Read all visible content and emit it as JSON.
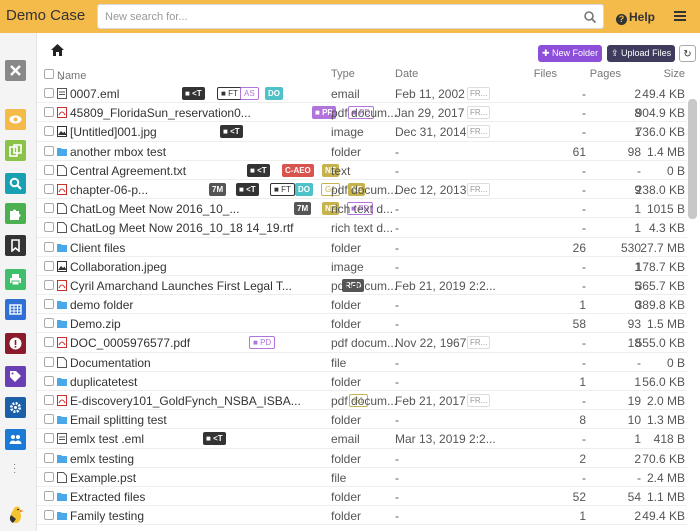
{
  "app": {
    "title": "Demo Case"
  },
  "search": {
    "placeholder": "New search for..."
  },
  "help": {
    "label": "Help"
  },
  "toolbar": {
    "new_folder": "New Folder",
    "upload": "Upload Files"
  },
  "columns": {
    "name": "Name",
    "type": "Type",
    "date": "Date",
    "files": "Files",
    "pages": "Pages",
    "size": "Size"
  },
  "colors": {
    "topbar": "#f4ba4a",
    "new_folder": "#8d4fd9",
    "upload": "#3f3b5c"
  },
  "sidebar": [
    {
      "name": "close-icon",
      "color": "#888888"
    },
    {
      "name": "eye-icon",
      "color": "#f4ba4a"
    },
    {
      "name": "copy-icon",
      "color": "#8bc34a"
    },
    {
      "name": "search-icon",
      "color": "#1aa0b3"
    },
    {
      "name": "puzzle-icon",
      "color": "#4caf50"
    },
    {
      "name": "bookmark-icon",
      "color": "#333333"
    },
    {
      "name": "print-icon",
      "color": "#3fbf6b"
    },
    {
      "name": "table-icon",
      "color": "#2f6fd6"
    },
    {
      "name": "alert-icon",
      "color": "#8b1a2b"
    },
    {
      "name": "tags-icon",
      "color": "#6a3fb5"
    },
    {
      "name": "gear-icon",
      "color": "#1a5fa8"
    },
    {
      "name": "users-icon",
      "color": "#1a7ad6"
    }
  ],
  "rows": [
    {
      "icon": "email",
      "name": "0007.eml",
      "type": "email",
      "date": "Feb 11, 2002",
      "fr": "FR...",
      "files": "-",
      "pages": "2",
      "size": "49.4 KB",
      "tags": [
        [
          "dark",
          "<T"
        ],
        [
          "out-dark",
          "FT"
        ],
        [
          "out-purp",
          "AS"
        ],
        [
          "teal",
          "DO"
        ]
      ]
    },
    {
      "icon": "pdf",
      "name": "45809_FloridaSun_reservation0...",
      "type": "pdf docum...",
      "date": "Jan 29, 2017",
      "fr": "FR...",
      "files": "-",
      "pages": "8",
      "size": "904.9 KB",
      "tags": [
        [
          "purp",
          "PR"
        ],
        [
          "out-purp",
          "PD"
        ]
      ]
    },
    {
      "icon": "image",
      "name": "[Untitled]001.jpg",
      "type": "image",
      "date": "Dec 31, 2014",
      "fr": "FR...",
      "files": "-",
      "pages": "1",
      "size": "736.0 KB",
      "tags": [
        [
          "dark",
          "<T"
        ]
      ]
    },
    {
      "icon": "folder",
      "name": "another mbox test",
      "type": "folder",
      "date": "-",
      "fr": "",
      "files": "61",
      "pages": "98",
      "size": "1.4 MB",
      "tags": []
    },
    {
      "icon": "text",
      "name": "Central Agreement.txt",
      "type": "text",
      "date": "-",
      "fr": "",
      "files": "-",
      "pages": "-",
      "size": "0 B",
      "tags": [
        [
          "dark",
          "<T"
        ],
        [
          "red",
          "C-AEO"
        ],
        [
          "olive",
          "NE"
        ]
      ]
    },
    {
      "icon": "pdf",
      "name": "chapter-06-p...",
      "type": "pdf docum...",
      "date": "Dec 12, 2013",
      "fr": "FR...",
      "files": "-",
      "pages": "9",
      "size": "238.0 KB",
      "tags": [
        [
          "gray",
          "7M"
        ],
        [
          "dark",
          "<T"
        ],
        [
          "out-dark",
          "FT"
        ],
        [
          "teal",
          "DO"
        ],
        [
          "out-olive",
          "G1"
        ],
        [
          "olive",
          "NE"
        ]
      ]
    },
    {
      "icon": "text",
      "name": "ChatLog Meet Now 2016_10_...",
      "type": "rich text d...",
      "date": "-",
      "fr": "",
      "files": "-",
      "pages": "1",
      "size": "1015 B",
      "tags": [
        [
          "gray",
          "7M"
        ],
        [
          "olive",
          "NE"
        ],
        [
          "out-purp",
          "PD"
        ]
      ]
    },
    {
      "icon": "text",
      "name": "ChatLog Meet Now 2016_10_18 14_19.rtf",
      "type": "rich text d...",
      "date": "-",
      "fr": "",
      "files": "-",
      "pages": "1",
      "size": "4.3 KB",
      "tags": []
    },
    {
      "icon": "folder",
      "name": "Client files",
      "type": "folder",
      "date": "-",
      "fr": "",
      "files": "26",
      "pages": "530",
      "size": "27.7 MB",
      "tags": []
    },
    {
      "icon": "image",
      "name": "Collaboration.jpeg",
      "type": "image",
      "date": "-",
      "fr": "",
      "files": "-",
      "pages": "1",
      "size": "178.7 KB",
      "tags": []
    },
    {
      "icon": "pdf",
      "name": "Cyril Amarchand Launches First Legal T...",
      "type": "pdf docum...",
      "date": "Feb 21, 2019 2:2...",
      "fr": "",
      "files": "-",
      "pages": "5",
      "size": "365.7 KB",
      "tags": [
        [
          "gray",
          "RFD"
        ]
      ]
    },
    {
      "icon": "folder",
      "name": "demo folder",
      "type": "folder",
      "date": "-",
      "fr": "",
      "files": "1",
      "pages": "0",
      "size": "389.8 KB",
      "tags": []
    },
    {
      "icon": "folder",
      "name": "Demo.zip",
      "type": "folder",
      "date": "-",
      "fr": "",
      "files": "58",
      "pages": "93",
      "size": "1.5 MB",
      "tags": []
    },
    {
      "icon": "pdf",
      "name": "DOC_0005976577.pdf",
      "type": "pdf docum...",
      "date": "Nov 22, 1967",
      "fr": "FR...",
      "files": "-",
      "pages": "18",
      "size": "555.0 KB",
      "tags": [
        [
          "out-purp",
          "PD"
        ]
      ]
    },
    {
      "icon": "text",
      "name": "Documentation",
      "type": "file",
      "date": "-",
      "fr": "",
      "files": "-",
      "pages": "-",
      "size": "0 B",
      "tags": []
    },
    {
      "icon": "folder",
      "name": "duplicatetest",
      "type": "folder",
      "date": "-",
      "fr": "",
      "files": "1",
      "pages": "1",
      "size": "56.0 KB",
      "tags": []
    },
    {
      "icon": "pdf",
      "name": "E-discovery101_GoldFynch_NSBA_ISBA...",
      "type": "pdf docum...",
      "date": "Feb 21, 2017",
      "fr": "FR...",
      "files": "-",
      "pages": "19",
      "size": "2.0 MB",
      "tags": [
        [
          "out-olive",
          "G1"
        ]
      ]
    },
    {
      "icon": "folder",
      "name": "Email splitting test",
      "type": "folder",
      "date": "-",
      "fr": "",
      "files": "8",
      "pages": "10",
      "size": "1.3 MB",
      "tags": []
    },
    {
      "icon": "email",
      "name": "emlx test .eml",
      "type": "email",
      "date": "Mar 13, 2019 2:2...",
      "fr": "",
      "files": "-",
      "pages": "1",
      "size": "418 B",
      "tags": [
        [
          "dark",
          "<T"
        ]
      ]
    },
    {
      "icon": "folder",
      "name": "emlx testing",
      "type": "folder",
      "date": "-",
      "fr": "",
      "files": "2",
      "pages": "2",
      "size": "70.6 KB",
      "tags": []
    },
    {
      "icon": "text",
      "name": "Example.pst",
      "type": "file",
      "date": "-",
      "fr": "",
      "files": "-",
      "pages": "-",
      "size": "2.4 MB",
      "tags": []
    },
    {
      "icon": "folder",
      "name": "Extracted files",
      "type": "folder",
      "date": "-",
      "fr": "",
      "files": "52",
      "pages": "54",
      "size": "1.1 MB",
      "tags": []
    },
    {
      "icon": "folder",
      "name": "Family testing",
      "type": "folder",
      "date": "-",
      "fr": "",
      "files": "1",
      "pages": "2",
      "size": "49.4 KB",
      "tags": []
    }
  ]
}
